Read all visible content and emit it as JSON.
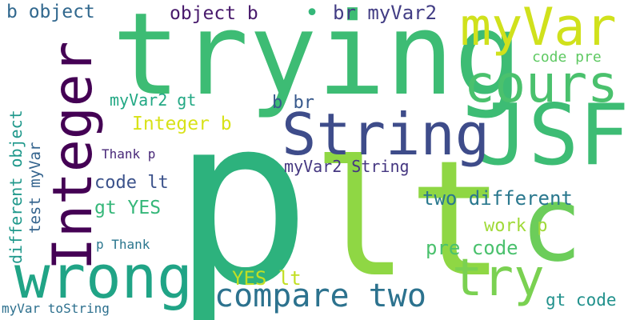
{
  "words": {
    "p": {
      "text": "p",
      "color": "#2db27d"
    },
    "lt": {
      "text": "lt",
      "color": "#8fd744"
    },
    "trying": {
      "text": "trying",
      "color": "#3dbc74"
    },
    "JSF": {
      "text": "JSF",
      "color": "#3dbc74"
    },
    "c": {
      "text": "c",
      "color": "#6ccd5a"
    },
    "integer": {
      "text": "Integer",
      "color": "#440154"
    },
    "myvar": {
      "text": "myVar",
      "color": "#d0e11c"
    },
    "cours": {
      "text": "cours",
      "color": "#4ac16d"
    },
    "string": {
      "text": "String",
      "color": "#3e4c8a"
    },
    "wrong": {
      "text": "wrong",
      "color": "#20a486"
    },
    "try": {
      "text": "try",
      "color": "#7ad151"
    },
    "compare_two": {
      "text": "compare two",
      "color": "#2c728e"
    },
    "b_object": {
      "text": "b object",
      "color": "#31688e"
    },
    "object_b": {
      "text": "object b",
      "color": "#481a6c"
    },
    "br_myvar2": {
      "text": "br myVar2",
      "color": "#433e85"
    },
    "code_pre": {
      "text": "code pre",
      "color": "#5ec962"
    },
    "myvar2_gt": {
      "text": "myVar2 gt",
      "color": "#22a884"
    },
    "b_br": {
      "text": "b br",
      "color": "#38598c"
    },
    "integer_b": {
      "text": "Integer b",
      "color": "#d8e219"
    },
    "different_object": {
      "text": "different object",
      "color": "#1f988b"
    },
    "test_myvar": {
      "text": "test myVar",
      "color": "#33638d"
    },
    "thank_p": {
      "text": "Thank p",
      "color": "#482878"
    },
    "myvar2_string": {
      "text": "myVar2 String",
      "color": "#453781"
    },
    "code_lt": {
      "text": "code lt",
      "color": "#3b528b"
    },
    "two_different": {
      "text": "two different",
      "color": "#2a788e"
    },
    "gt_yes": {
      "text": "gt YES",
      "color": "#35b779"
    },
    "work_p": {
      "text": "work p",
      "color": "#a0da39"
    },
    "p_thank": {
      "text": "p Thank",
      "color": "#2a768e"
    },
    "pre_code": {
      "text": "pre code",
      "color": "#4ac16d"
    },
    "yes_lt": {
      "text": "YES lt",
      "color": "#c2df23"
    },
    "gt_code": {
      "text": "gt code",
      "color": "#21918c"
    },
    "myvar_tostring": {
      "text": "myVar toString",
      "color": "#2d708e"
    },
    "dot": {
      "text": "•",
      "color": "#35b779"
    }
  }
}
